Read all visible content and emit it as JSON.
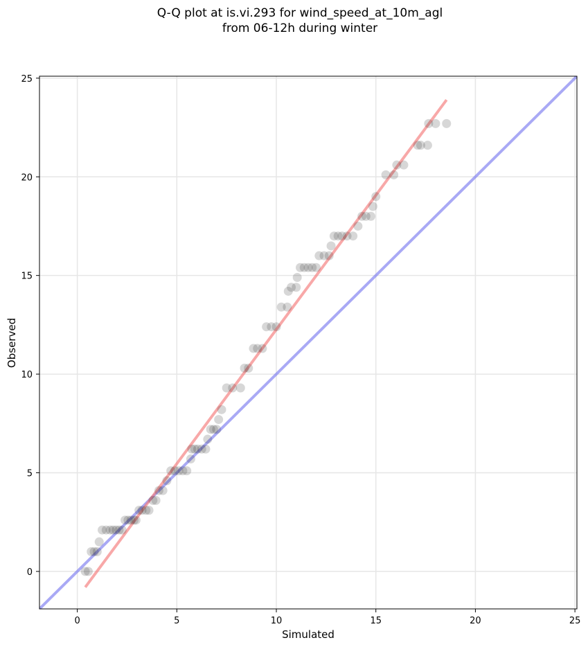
{
  "chart_data": {
    "type": "scatter",
    "title": "Q-Q plot at is.vi.293 for wind_speed_at_10m_agl",
    "subtitle": "from 06-12h during winter",
    "xlabel": "Simulated",
    "ylabel": "Observed",
    "xlim": [
      -1.9,
      25.1
    ],
    "ylim": [
      -1.9,
      25.1
    ],
    "xticks": [
      "0",
      "5",
      "10",
      "15",
      "20",
      "25"
    ],
    "yticks": [
      "0",
      "5",
      "10",
      "15",
      "20",
      "25"
    ],
    "grid": true,
    "colors": {
      "points": "#222222",
      "fit_line": "#f47a7a",
      "identity_line": "#7b7bf0"
    },
    "series": [
      {
        "kind": "points",
        "x": [
          0.4,
          0.55,
          0.7,
          0.85,
          1.0,
          1.1,
          1.25,
          1.45,
          1.65,
          1.8,
          1.95,
          2.1,
          2.25,
          2.4,
          2.55,
          2.7,
          2.85,
          2.95,
          3.1,
          3.25,
          3.45,
          3.6,
          3.8,
          3.95,
          4.1,
          4.3,
          4.5,
          4.7,
          4.9,
          5.1,
          5.3,
          5.5,
          5.7,
          5.75,
          5.9,
          6.05,
          6.25,
          6.45,
          6.55,
          6.7,
          6.85,
          7.0,
          7.1,
          7.25,
          7.5,
          7.8,
          8.2,
          8.4,
          8.6,
          8.85,
          9.05,
          9.3,
          9.5,
          9.75,
          10.0,
          10.25,
          10.55,
          10.6,
          10.75,
          11.0,
          11.05,
          11.2,
          11.4,
          11.6,
          11.8,
          12.0,
          12.15,
          12.4,
          12.65,
          12.75,
          12.9,
          13.1,
          13.3,
          13.55,
          13.85,
          14.1,
          14.3,
          14.5,
          14.75,
          14.85,
          15.0,
          15.5,
          15.9,
          16.05,
          16.4,
          17.1,
          17.25,
          17.6,
          17.65,
          18.0,
          18.55
        ],
        "y": [
          0.0,
          0.0,
          1.0,
          1.0,
          1.0,
          1.5,
          2.1,
          2.1,
          2.1,
          2.1,
          2.1,
          2.1,
          2.1,
          2.6,
          2.6,
          2.6,
          2.6,
          2.6,
          3.1,
          3.1,
          3.1,
          3.1,
          3.6,
          3.6,
          4.1,
          4.1,
          4.6,
          5.1,
          5.1,
          5.1,
          5.1,
          5.1,
          5.7,
          6.2,
          6.2,
          6.2,
          6.2,
          6.2,
          6.7,
          7.2,
          7.2,
          7.2,
          7.7,
          8.2,
          9.3,
          9.3,
          9.3,
          10.3,
          10.3,
          11.3,
          11.3,
          11.3,
          12.4,
          12.4,
          12.4,
          13.4,
          13.4,
          14.2,
          14.4,
          14.4,
          14.9,
          15.4,
          15.4,
          15.4,
          15.4,
          15.4,
          16.0,
          16.0,
          16.0,
          16.5,
          17.0,
          17.0,
          17.0,
          17.0,
          17.0,
          17.5,
          18.0,
          18.0,
          18.0,
          18.5,
          19.0,
          20.1,
          20.1,
          20.6,
          20.6,
          21.6,
          21.6,
          21.6,
          22.7,
          22.7,
          22.7
        ]
      },
      {
        "kind": "line",
        "x": [
          0.4,
          18.55
        ],
        "y": [
          -0.8,
          23.9
        ]
      },
      {
        "kind": "line",
        "x": [
          -1.9,
          25.1
        ],
        "y": [
          -1.9,
          25.1
        ]
      }
    ]
  }
}
